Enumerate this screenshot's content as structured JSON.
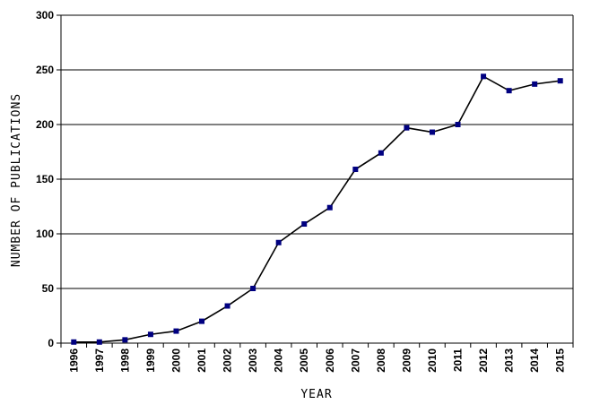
{
  "chart_data": {
    "type": "line",
    "xlabel": "YEAR",
    "ylabel": "NUMBER OF PUBLICATIONS",
    "ylim": [
      0,
      300
    ],
    "yticks": [
      "0",
      "50",
      "100",
      "150",
      "200",
      "250",
      "300"
    ],
    "grid": true,
    "categories": [
      "1996",
      "1997",
      "1998",
      "1999",
      "2000",
      "2001",
      "2002",
      "2003",
      "2004",
      "2005",
      "2006",
      "2007",
      "2008",
      "2009",
      "2010",
      "2011",
      "2012",
      "2013",
      "2014",
      "2015"
    ],
    "series": [
      {
        "values": [
          1,
          1,
          3,
          8,
          11,
          20,
          34,
          50,
          92,
          109,
          124,
          159,
          174,
          197,
          193,
          200,
          244,
          231,
          237,
          240
        ]
      }
    ],
    "colors": {
      "line": "#000000",
      "marker": "#000080",
      "grid": "#000000"
    }
  }
}
